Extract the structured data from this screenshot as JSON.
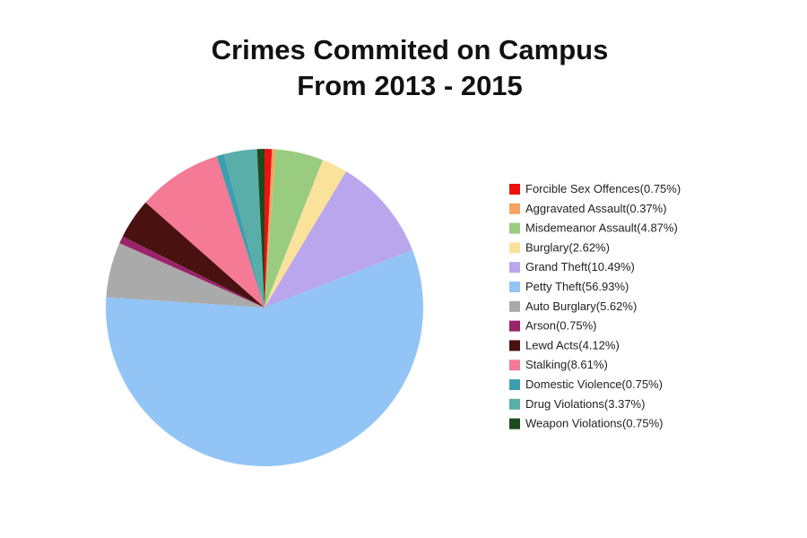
{
  "chart_data": {
    "type": "pie",
    "title": "Crimes Commited on Campus",
    "subtitle": "From 2013 - 2015",
    "categories": [
      "Forcible Sex Offences",
      "Aggravated Assault",
      "Misdemeanor Assault",
      "Burglary",
      "Grand Theft",
      "Petty Theft",
      "Auto Burglary",
      "Arson",
      "Lewd Acts",
      "Stalking",
      "Domestic Violence",
      "Drug Violations",
      "Weapon Violations"
    ],
    "values": [
      0.75,
      0.37,
      4.87,
      2.62,
      10.49,
      56.93,
      5.62,
      0.75,
      4.12,
      8.61,
      0.75,
      3.37,
      0.75
    ],
    "value_labels": [
      "(0.75%)",
      "(0.37%)",
      "(4.87%)",
      "(2.62%)",
      "(10.49%)",
      "(56.93%)",
      "(5.62%)",
      "(0.75%)",
      "(4.12%)",
      "(8.61%)",
      "(0.75%)",
      "(3.37%)",
      "(0.75%)"
    ],
    "colors": [
      "#ee1111",
      "#f4a460",
      "#99cc7f",
      "#fbe29a",
      "#b9a6ec",
      "#92c5f5",
      "#aaaaaa",
      "#99246b",
      "#4a1111",
      "#f47a95",
      "#3c9fb0",
      "#5aaeaa",
      "#1c4a1c"
    ],
    "legend": "right"
  }
}
